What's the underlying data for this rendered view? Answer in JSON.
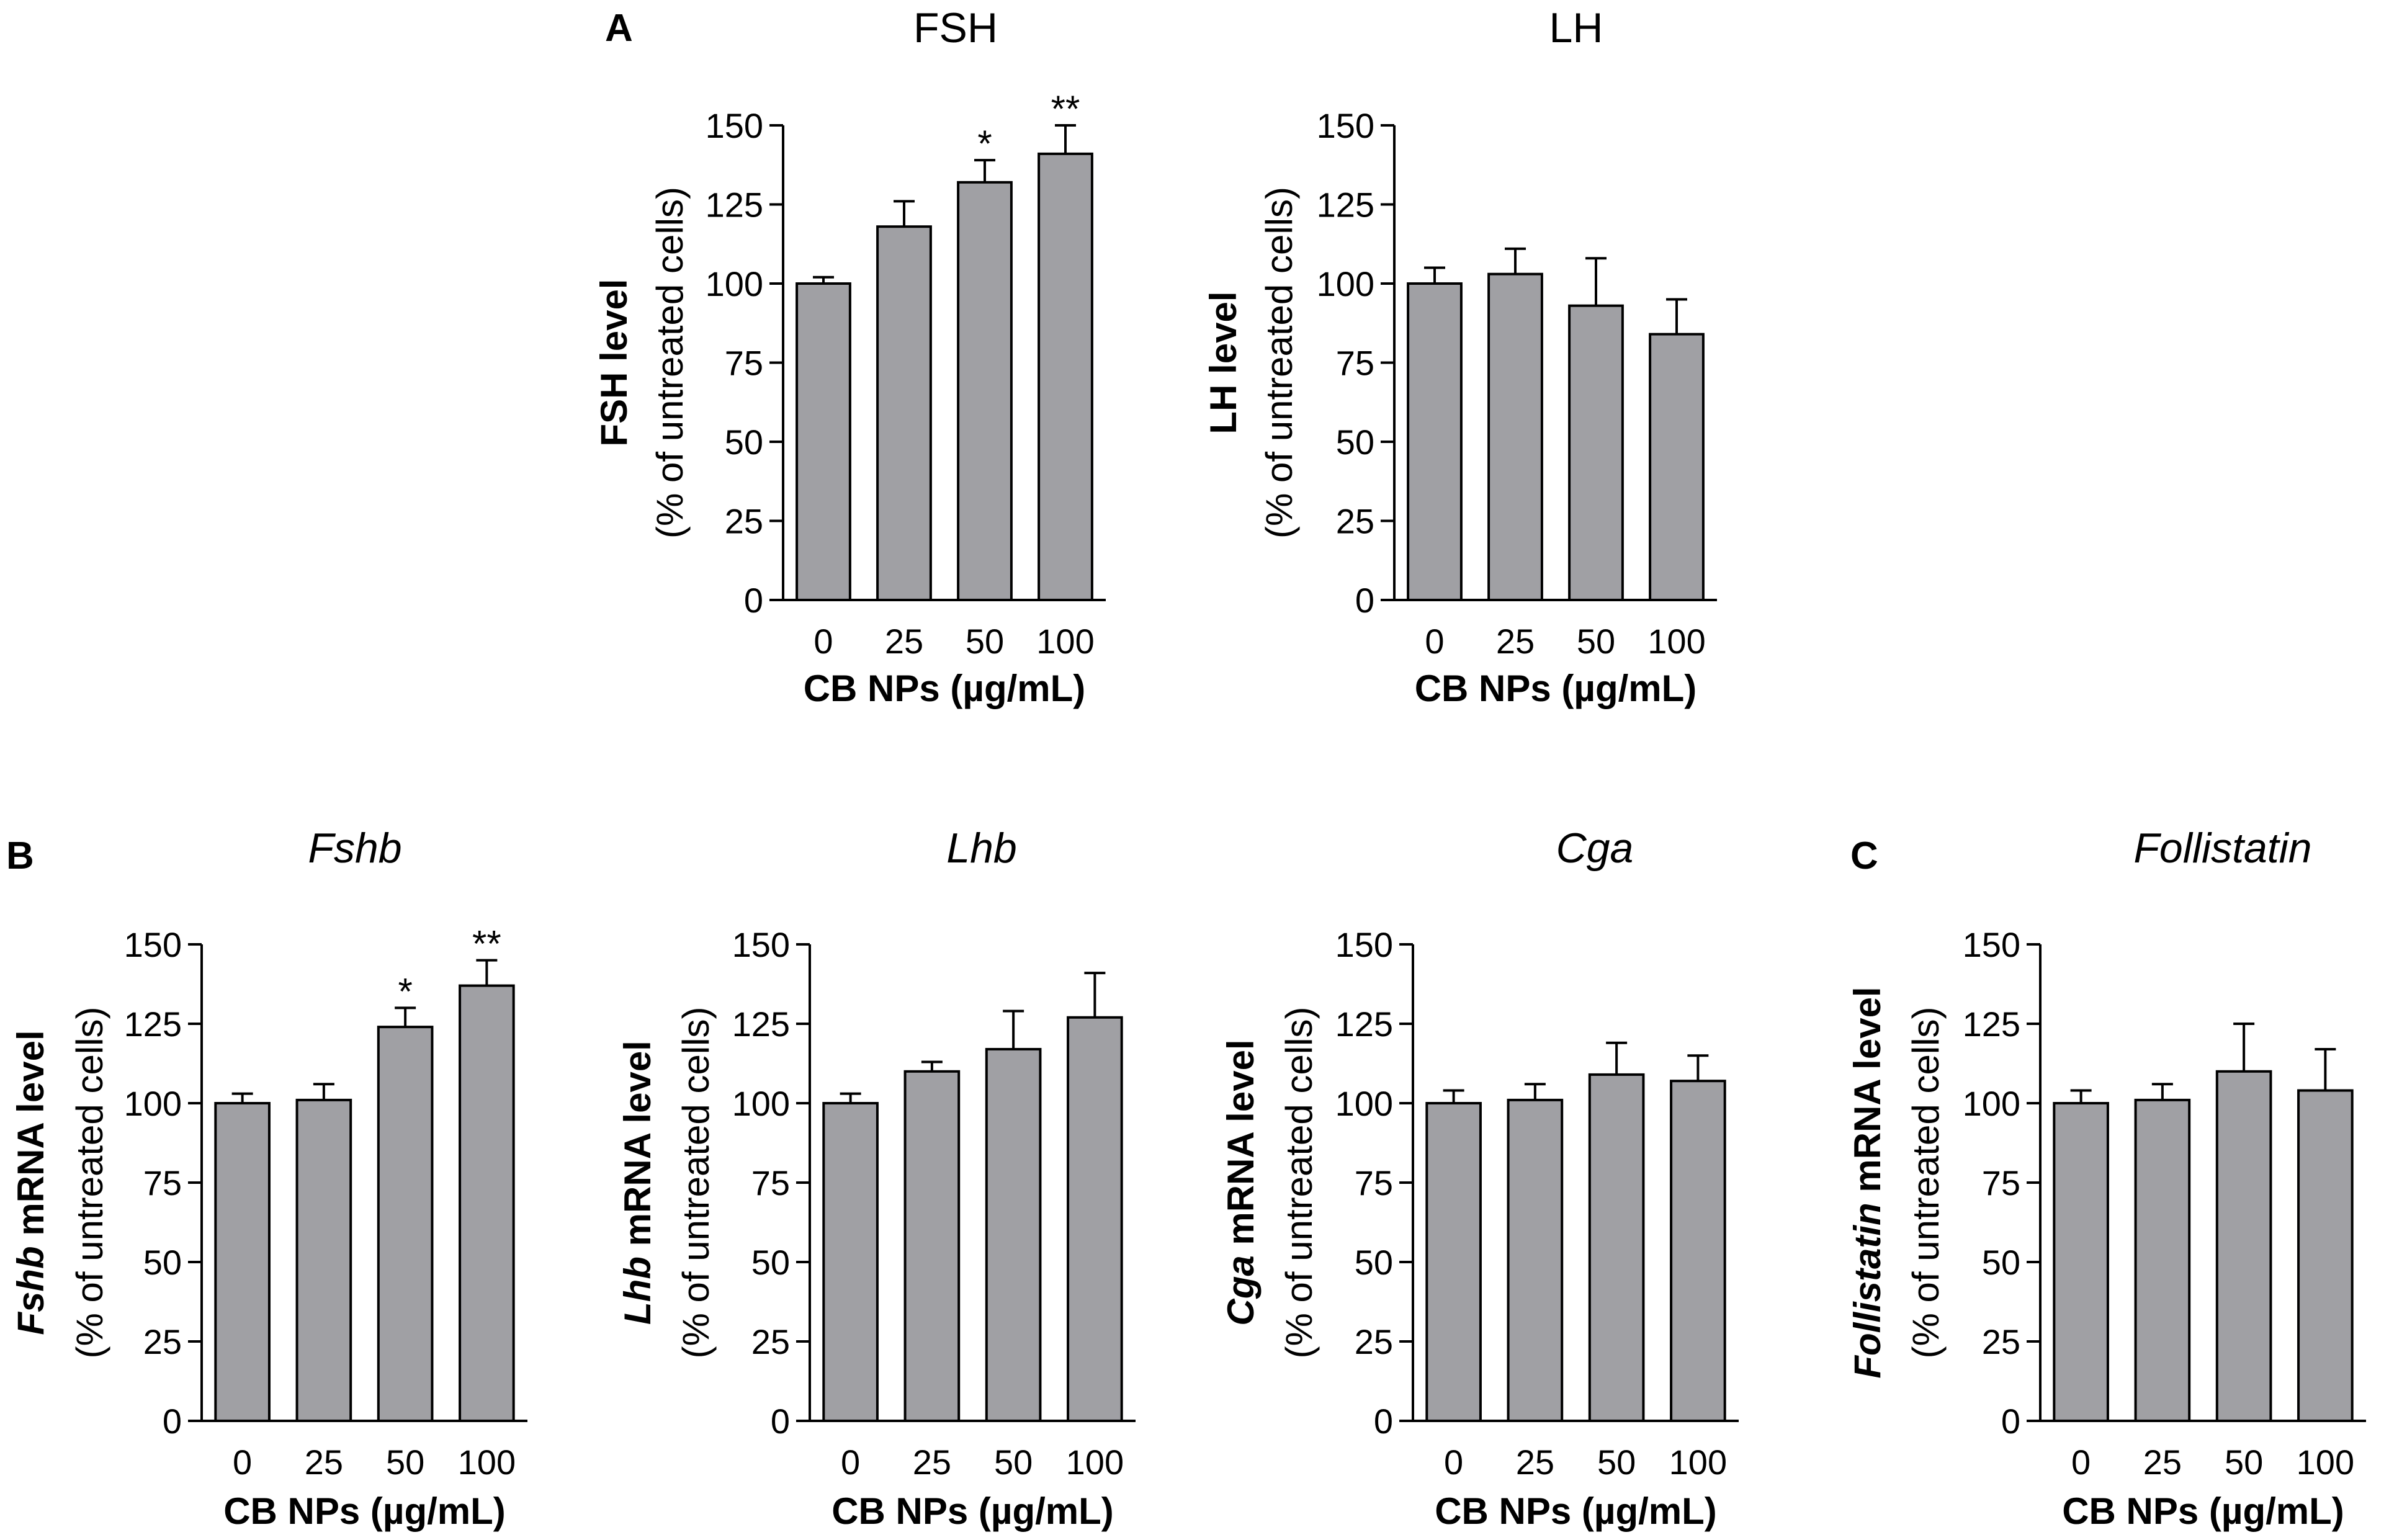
{
  "figure": {
    "panel_letters": [
      "A",
      "B",
      "C"
    ]
  },
  "chart_data": [
    {
      "type": "bar",
      "id": "fsh",
      "panel": "A",
      "title": "FSH",
      "title_italic": false,
      "ylabel_bold": "FSH level",
      "ylabel_italic_part": "",
      "ylabel_rest": "",
      "ylabel_sub": "(% of untreated cells)",
      "xlabel": "CB NPs (µg/mL)",
      "categories": [
        "0",
        "25",
        "50",
        "100"
      ],
      "values": [
        100,
        118,
        132,
        141
      ],
      "errors": [
        2,
        8,
        7,
        9
      ],
      "significance": [
        "",
        "",
        "*",
        "**"
      ],
      "ylim": [
        0,
        150
      ],
      "yticks": [
        0,
        25,
        50,
        75,
        100,
        125,
        150
      ],
      "bar_color": "#a0a0a4"
    },
    {
      "type": "bar",
      "id": "lh",
      "panel": "",
      "title": "LH",
      "title_italic": false,
      "ylabel_bold": "LH level",
      "ylabel_italic_part": "",
      "ylabel_rest": "",
      "ylabel_sub": "(% of untreated cells)",
      "xlabel": "CB NPs (µg/mL)",
      "categories": [
        "0",
        "25",
        "50",
        "100"
      ],
      "values": [
        100,
        103,
        93,
        84
      ],
      "errors": [
        5,
        8,
        15,
        11
      ],
      "significance": [
        "",
        "",
        "",
        ""
      ],
      "ylim": [
        0,
        150
      ],
      "yticks": [
        0,
        25,
        50,
        75,
        100,
        125,
        150
      ],
      "bar_color": "#a0a0a4"
    },
    {
      "type": "bar",
      "id": "fshb",
      "panel": "B",
      "title": "Fshb",
      "title_italic": true,
      "ylabel_bold": "",
      "ylabel_italic_part": "Fshb",
      "ylabel_rest": " mRNA level",
      "ylabel_sub": "(% of untreated cells)",
      "xlabel": "CB NPs (µg/mL)",
      "categories": [
        "0",
        "25",
        "50",
        "100"
      ],
      "values": [
        100,
        101,
        124,
        137
      ],
      "errors": [
        3,
        5,
        6,
        8
      ],
      "significance": [
        "",
        "",
        "*",
        "**"
      ],
      "ylim": [
        0,
        150
      ],
      "yticks": [
        0,
        25,
        50,
        75,
        100,
        125,
        150
      ],
      "bar_color": "#a0a0a4"
    },
    {
      "type": "bar",
      "id": "lhb",
      "panel": "",
      "title": "Lhb",
      "title_italic": true,
      "ylabel_bold": "",
      "ylabel_italic_part": "Lhb",
      "ylabel_rest": " mRNA level",
      "ylabel_sub": "(% of untreated cells)",
      "xlabel": "CB NPs (µg/mL)",
      "categories": [
        "0",
        "25",
        "50",
        "100"
      ],
      "values": [
        100,
        110,
        117,
        127
      ],
      "errors": [
        3,
        3,
        12,
        14
      ],
      "significance": [
        "",
        "",
        "",
        ""
      ],
      "ylim": [
        0,
        150
      ],
      "yticks": [
        0,
        25,
        50,
        75,
        100,
        125,
        150
      ],
      "bar_color": "#a0a0a4"
    },
    {
      "type": "bar",
      "id": "cga",
      "panel": "",
      "title": "Cga",
      "title_italic": true,
      "ylabel_bold": "",
      "ylabel_italic_part": "Cga",
      "ylabel_rest": " mRNA level",
      "ylabel_sub": "(% of untreated cells)",
      "xlabel": "CB NPs (µg/mL)",
      "categories": [
        "0",
        "25",
        "50",
        "100"
      ],
      "values": [
        100,
        101,
        109,
        107
      ],
      "errors": [
        4,
        5,
        10,
        8
      ],
      "significance": [
        "",
        "",
        "",
        ""
      ],
      "ylim": [
        0,
        150
      ],
      "yticks": [
        0,
        25,
        50,
        75,
        100,
        125,
        150
      ],
      "bar_color": "#a0a0a4"
    },
    {
      "type": "bar",
      "id": "follistatin",
      "panel": "C",
      "title": "Follistatin",
      "title_italic": true,
      "ylabel_bold": "",
      "ylabel_italic_part": "Follistatin",
      "ylabel_rest": " mRNA level",
      "ylabel_sub": "(% of untreated cells)",
      "xlabel": "CB NPs (µg/mL)",
      "categories": [
        "0",
        "25",
        "50",
        "100"
      ],
      "values": [
        100,
        101,
        110,
        104
      ],
      "errors": [
        4,
        5,
        15,
        13
      ],
      "significance": [
        "",
        "",
        "",
        ""
      ],
      "ylim": [
        0,
        150
      ],
      "yticks": [
        0,
        25,
        50,
        75,
        100,
        125,
        150
      ],
      "bar_color": "#a0a0a4"
    }
  ]
}
